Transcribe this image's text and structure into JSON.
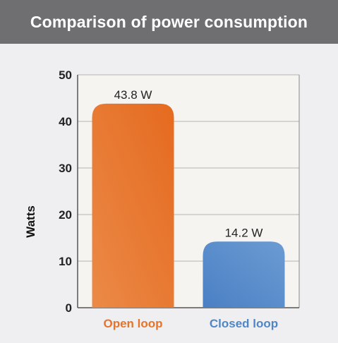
{
  "colors": {
    "header": "#6f6f71",
    "background": "#efeff1",
    "plot_background": "#f6f4f1",
    "grid": "#b5b5b5",
    "open_loop": "#e8732a",
    "closed_loop": "#4f86c6"
  },
  "chart_data": {
    "type": "bar",
    "title": "Comparison of power consumption",
    "ylabel": "Watts",
    "xlabel": "",
    "categories": [
      "Open loop",
      "Closed loop"
    ],
    "values": [
      43.8,
      14.2
    ],
    "data_labels": [
      "43.8 W",
      "14.2 W"
    ],
    "yticks": [
      "0",
      "10",
      "20",
      "30",
      "40",
      "50"
    ],
    "ylim": [
      0,
      50
    ],
    "grid": true,
    "legend": "none"
  }
}
